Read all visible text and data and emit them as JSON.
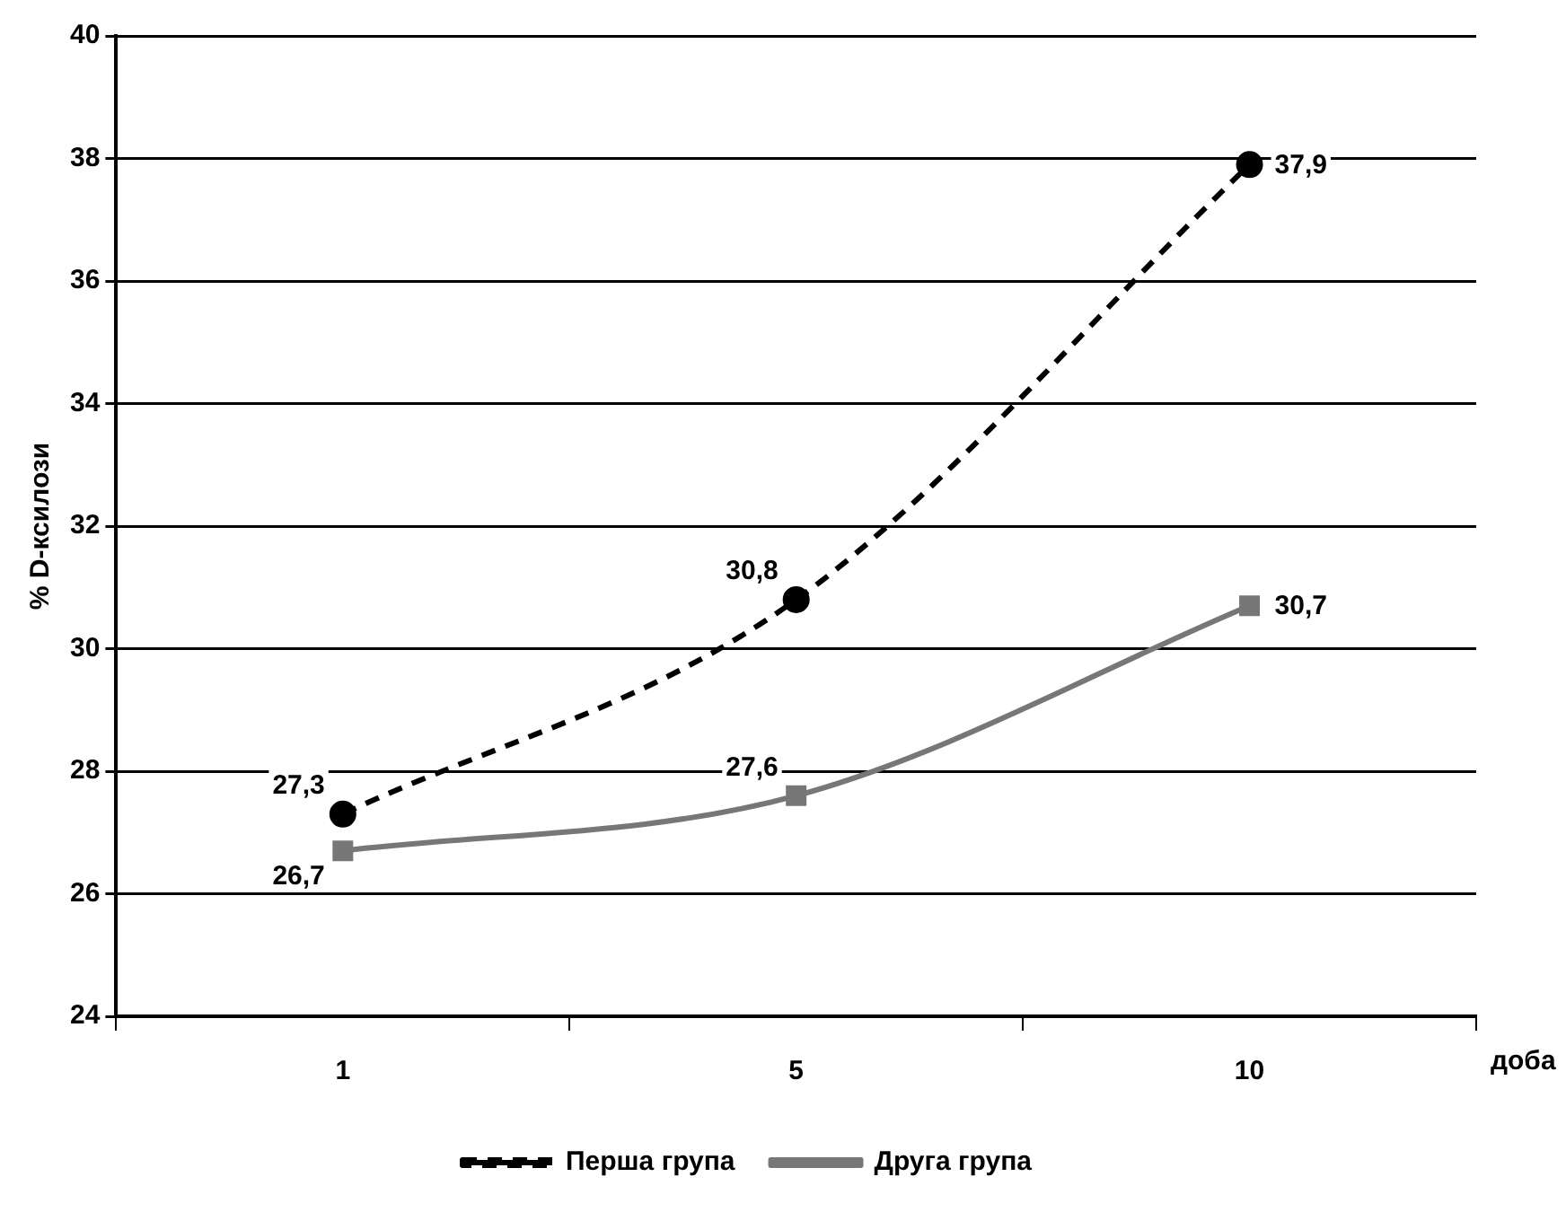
{
  "chart_data": {
    "type": "line",
    "xlabel": "доба",
    "ylabel": "% D-ксилози",
    "categories": [
      "1",
      "5",
      "10"
    ],
    "series": [
      {
        "name": "Перша група",
        "color": "#000000",
        "values": [
          27.3,
          30.8,
          37.9
        ],
        "value_labels": [
          "27,3",
          "30,8",
          "37,9"
        ],
        "marker": "circle",
        "line_style": "dashed"
      },
      {
        "name": "Друга група",
        "color": "#777777",
        "values": [
          26.7,
          27.6,
          30.7
        ],
        "value_labels": [
          "26,7",
          "27,6",
          "30,7"
        ],
        "marker": "square",
        "line_style": "solid"
      }
    ],
    "ylim": [
      24,
      40
    ],
    "yticks": [
      24,
      26,
      28,
      30,
      32,
      34,
      36,
      38,
      40
    ],
    "grid": "y",
    "legend": "bottom"
  }
}
